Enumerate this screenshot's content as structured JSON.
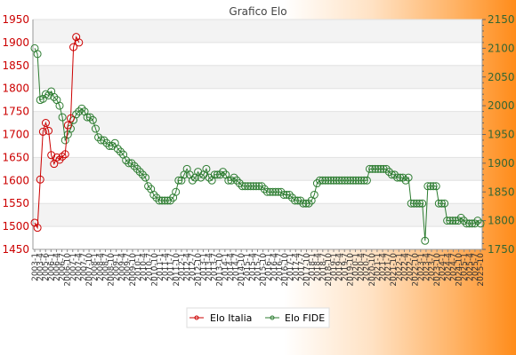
{
  "chart_data": {
    "type": "line",
    "title": "Grafico Elo",
    "xlabel": "",
    "ylabel": "",
    "y_left_lim": [
      1450,
      1950
    ],
    "y_left_ticks": [
      1450,
      1500,
      1550,
      1600,
      1650,
      1700,
      1750,
      1800,
      1850,
      1900,
      1950
    ],
    "y_right_lim": [
      1750,
      2150
    ],
    "y_right_ticks": [
      1750,
      1800,
      1850,
      1900,
      1950,
      2000,
      2050,
      2100,
      2150
    ],
    "x_tick_labels": [
      "2003-1",
      "2003-4",
      "2005-6",
      "2006-1",
      "2006-4",
      "2006-7",
      "2006-10",
      "2007-1",
      "2007-4",
      "2007-7",
      "2007-10",
      "2008-1",
      "2008-4",
      "2008-7",
      "2008-10",
      "2009-1",
      "2009-4",
      "2009-7",
      "2009-10",
      "2010-1",
      "2010-4",
      "2010-7",
      "2010-10",
      "2011-1",
      "2011-4",
      "2011-7",
      "2011-10",
      "2012-1",
      "2012-4",
      "2012-7",
      "2012-10",
      "2013-1",
      "2013-4",
      "2013-7",
      "2013-10",
      "2014-1",
      "2014-4",
      "2014-7",
      "2014-10",
      "2015-1",
      "2015-4",
      "2015-7",
      "2015-10",
      "2016-1",
      "2016-4",
      "2016-7",
      "2016-10",
      "2017-1",
      "2017-4",
      "2017-7",
      "2017-10",
      "2018-1",
      "2018-4",
      "2018-7",
      "2018-10",
      "2019-1",
      "2019-4",
      "2019-7",
      "2019-10",
      "2020-1",
      "2020-4",
      "2020-7",
      "2020-10",
      "2021-1",
      "2021-4",
      "2021-7",
      "2021-10",
      "2022-1",
      "2022-4",
      "2022-7",
      "2022-10",
      "2023-1",
      "2023-4",
      "2023-7",
      "2023-10",
      "2024-1",
      "2024-4",
      "2024-7",
      "2024-10",
      "2025-1",
      "2025-4",
      "2025-7",
      "2025-10"
    ],
    "grid": true,
    "legend_position": "bottom",
    "series": [
      {
        "name": "Elo Italia",
        "axis": "left",
        "color": "#cc0000",
        "values": [
          1508,
          1497,
          1602,
          1706,
          1725,
          1708,
          1655,
          1636,
          1650,
          1645,
          1652,
          1657,
          1720,
          1735,
          1890,
          1912,
          1900
        ]
      },
      {
        "name": "Elo FIDE",
        "axis": "right",
        "color": "#2e7d32",
        "values": [
          2100,
          2090,
          2010,
          2012,
          2020,
          2018,
          2025,
          2015,
          2010,
          2000,
          1980,
          1940,
          1950,
          1960,
          1975,
          1985,
          1990,
          1995,
          1990,
          1980,
          1980,
          1975,
          1960,
          1945,
          1940,
          1940,
          1935,
          1930,
          1930,
          1935,
          1925,
          1920,
          1915,
          1905,
          1900,
          1900,
          1895,
          1890,
          1885,
          1880,
          1875,
          1860,
          1855,
          1845,
          1840,
          1835,
          1835,
          1835,
          1835,
          1835,
          1840,
          1850,
          1870,
          1870,
          1880,
          1890,
          1880,
          1870,
          1875,
          1885,
          1875,
          1880,
          1890,
          1875,
          1870,
          1880,
          1880,
          1880,
          1885,
          1880,
          1870,
          1870,
          1875,
          1870,
          1865,
          1860,
          1860,
          1860,
          1860,
          1860,
          1860,
          1860,
          1860,
          1855,
          1850,
          1850,
          1850,
          1850,
          1850,
          1850,
          1845,
          1845,
          1845,
          1840,
          1835,
          1835,
          1835,
          1830,
          1830,
          1830,
          1835,
          1845,
          1865,
          1870,
          1870,
          1870,
          1870,
          1870,
          1870,
          1870,
          1870,
          1870,
          1870,
          1870,
          1870,
          1870,
          1870,
          1870,
          1870,
          1870,
          1870,
          1890,
          1890,
          1890,
          1890,
          1890,
          1890,
          1890,
          1885,
          1880,
          1880,
          1875,
          1875,
          1875,
          1870,
          1875,
          1830,
          1830,
          1830,
          1830,
          1830,
          1765,
          1860,
          1860,
          1860,
          1860,
          1830,
          1830,
          1830,
          1800,
          1800,
          1800,
          1800,
          1800,
          1805,
          1800,
          1795,
          1795,
          1795,
          1795,
          1800,
          1795
        ]
      }
    ]
  }
}
